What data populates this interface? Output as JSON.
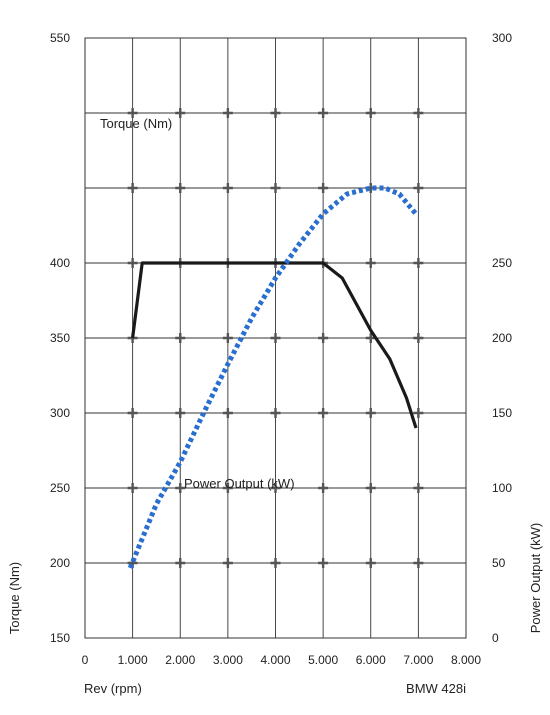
{
  "chart_data": {
    "type": "line",
    "title": "",
    "note": "BMW 428i",
    "xlabel": "Rev (rpm)",
    "ylabel": "Torque (Nm)",
    "y2label": "Power Output (kW)",
    "xlim": [
      0,
      8000
    ],
    "ylim": [
      150,
      550
    ],
    "y2lim": [
      0,
      300
    ],
    "x_ticks": [
      0,
      1000,
      2000,
      3000,
      4000,
      5000,
      6000,
      7000,
      8000
    ],
    "x_tick_labels": [
      "0",
      "1.000",
      "2.000",
      "3.000",
      "4.000",
      "5.000",
      "6.000",
      "7.000",
      "8.000"
    ],
    "y_ticks": [
      150,
      200,
      250,
      300,
      350,
      400,
      450,
      500,
      550
    ],
    "y_tick_labels": [
      "150",
      "200",
      "250",
      "300",
      "350",
      "400",
      "",
      "",
      "550"
    ],
    "y2_tick_labels": [
      "0",
      "50",
      "100",
      "150",
      "200",
      "250",
      "",
      "",
      "300"
    ],
    "grid": true,
    "series": [
      {
        "name": "Torque (Nm)",
        "axis": "left",
        "color": "#1a1a1a",
        "style": "solid",
        "x": [
          1000,
          1200,
          5000,
          5400,
          6000,
          6400,
          6750,
          6950
        ],
        "y": [
          350,
          400,
          400,
          390,
          355,
          336,
          310,
          290
        ]
      },
      {
        "name": "Power Output (kW)",
        "axis": "right",
        "color": "#2a6fd0",
        "style": "dotted",
        "x": [
          950,
          1500,
          2000,
          2500,
          3000,
          3500,
          4000,
          4500,
          5000,
          5500,
          6000,
          6300,
          6600,
          6950
        ],
        "y": [
          35,
          67,
          88,
          113,
          137,
          160,
          180,
          197,
          212,
          222,
          225,
          225,
          222,
          212
        ]
      }
    ],
    "annotations": [
      "Torque (Nm)",
      "Power Output (kW)"
    ]
  }
}
